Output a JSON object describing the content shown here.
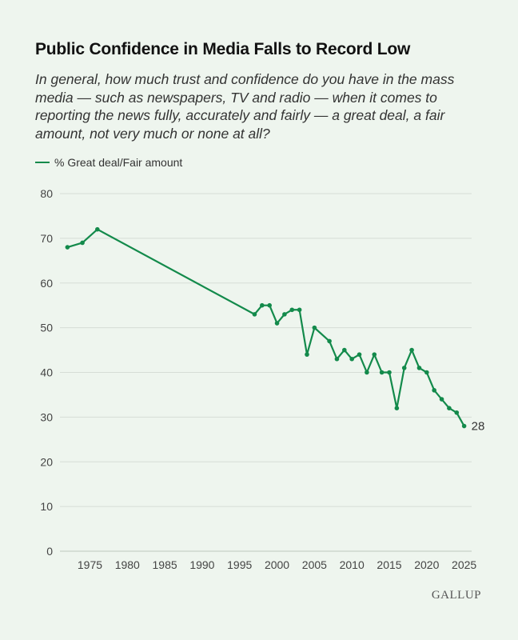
{
  "title": "Public Confidence in Media Falls to Record Low",
  "subtitle": "In general, how much trust and confidence do you have in the mass media — such as newspapers, TV and radio — when it comes to reporting the news fully, accurately and fairly — a great deal, a fair amount, not very much or none at all?",
  "brand": "GALLUP",
  "colors": {
    "line": "#138a4b",
    "grid": "#d6ddd6",
    "axis": "#bfc7bf",
    "text": "#444444"
  },
  "chart_data": {
    "type": "line",
    "title": "Public Confidence in Media Falls to Record Low",
    "xlabel": "",
    "ylabel": "",
    "ylim": [
      0,
      80
    ],
    "xlim": [
      1971,
      2026
    ],
    "yticks": [
      0,
      10,
      20,
      30,
      40,
      50,
      60,
      70,
      80
    ],
    "xticks": [
      1975,
      1980,
      1985,
      1990,
      1995,
      2000,
      2005,
      2010,
      2015,
      2020,
      2025
    ],
    "grid": true,
    "legend_position": "top-left",
    "series": [
      {
        "name": "% Great deal/Fair amount",
        "x": [
          1972,
          1974,
          1976,
          1997,
          1998,
          1999,
          2000,
          2001,
          2002,
          2003,
          2004,
          2005,
          2007,
          2008,
          2009,
          2010,
          2011,
          2012,
          2013,
          2014,
          2015,
          2016,
          2017,
          2018,
          2019,
          2020,
          2021,
          2022,
          2023,
          2024,
          2025
        ],
        "values": [
          68,
          69,
          72,
          53,
          55,
          55,
          51,
          53,
          54,
          54,
          44,
          50,
          47,
          43,
          45,
          43,
          44,
          40,
          44,
          40,
          40,
          32,
          41,
          45,
          41,
          40,
          36,
          34,
          32,
          31,
          28
        ]
      }
    ],
    "annotations": [
      {
        "x": 2025,
        "y": 28,
        "text": "28"
      }
    ]
  }
}
